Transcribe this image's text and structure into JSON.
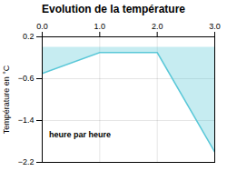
{
  "chart_data": {
    "type": "area",
    "title": "Evolution de la température",
    "ylabel": "Température en °C",
    "annotation": "heure par heure",
    "x": [
      0,
      1,
      2,
      3
    ],
    "values": [
      -0.5,
      -0.1,
      -0.1,
      -2.0
    ],
    "xlim": [
      0,
      3
    ],
    "xticks": [
      0,
      1,
      2,
      3
    ],
    "ylim": [
      -2.2,
      0.2
    ],
    "yticks": [
      0.2,
      -0.6,
      -1.4,
      -2.2
    ],
    "grid": true,
    "color": "#5bc8d8"
  }
}
